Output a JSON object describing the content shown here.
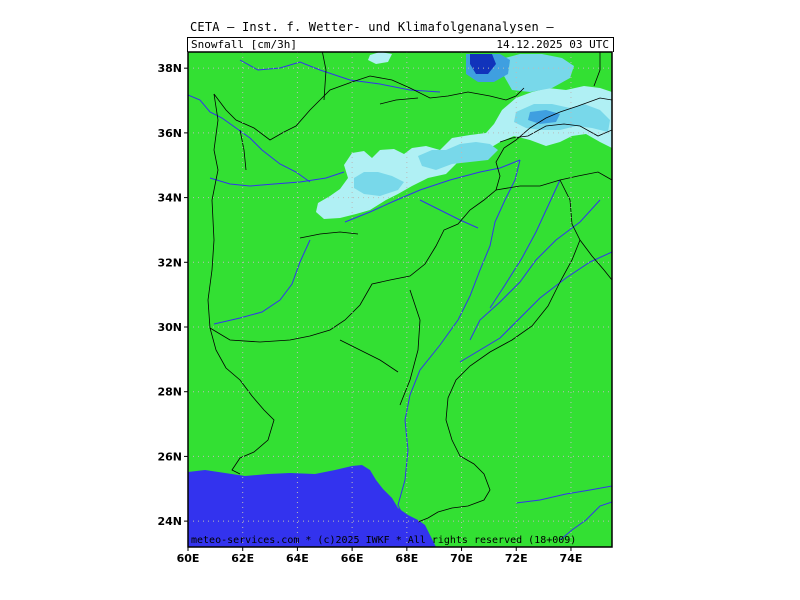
{
  "header": {
    "title": "CETA — Inst. f. Wetter- und Klimafolgenanalysen —",
    "parameter": "Snowfall [cm/3h]",
    "valid_time": "14.12.2025 03 UTC"
  },
  "footer": {
    "copyright": "meteo-services.com * (c)2025 IWKF * All rights reserved (18+009)"
  },
  "map": {
    "lon_range": [
      60,
      75.5
    ],
    "lat_range": [
      23.2,
      38.5
    ],
    "lon_ticks": [
      "60E",
      "62E",
      "64E",
      "66E",
      "68E",
      "70E",
      "72E",
      "74E"
    ],
    "lat_ticks": [
      "24N",
      "26N",
      "28N",
      "30N",
      "32N",
      "34N",
      "36N",
      "38N"
    ],
    "colors": {
      "land": "#33e033",
      "sea": "#3333ee",
      "snow_light": "#b0f0f4",
      "snow_mid": "#78d8ea",
      "snow_heavy": "#3f9fe0",
      "snow_max": "#1133bb",
      "border": "#000000",
      "river": "#3333ee",
      "grid": "#bbbbbb"
    }
  }
}
